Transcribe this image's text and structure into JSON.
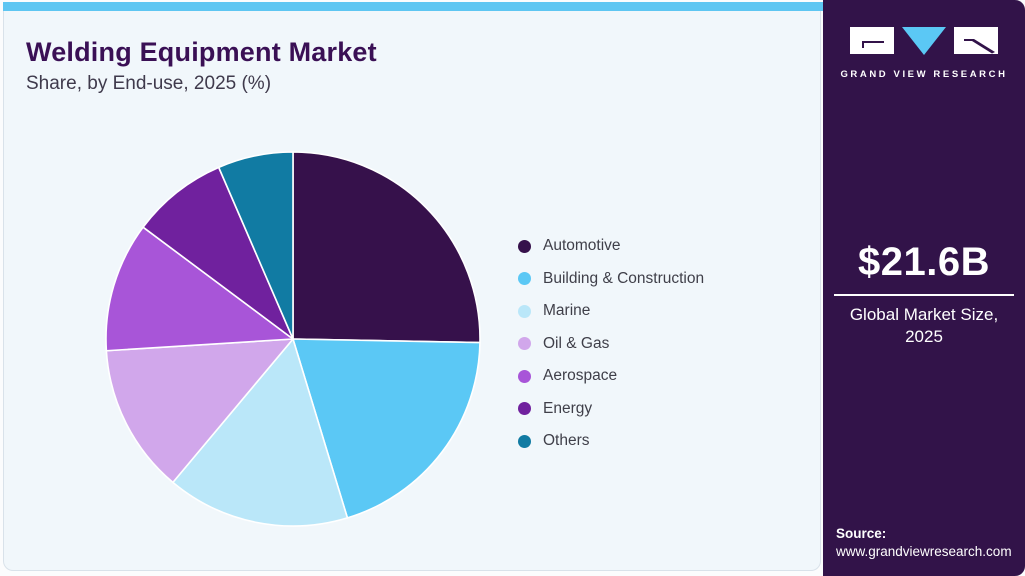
{
  "page": {
    "title": "Welding Equipment Market",
    "subtitle": "Share, by End-use, 2025 (%)",
    "accent_bar_color": "#5ec6f2",
    "card_bg": "#f1f7fb",
    "sidebar_bg": "#321349"
  },
  "brand": {
    "name": "GRAND VIEW RESEARCH",
    "logo_block_color": "#ffffff",
    "logo_triangle_color": "#5bc8f5"
  },
  "sidebar": {
    "market_size": "$21.6B",
    "market_size_caption": "Global Market Size, 2025",
    "source_label": "Source:",
    "source_url": "www.grandviewresearch.com"
  },
  "chart_data": {
    "type": "pie",
    "title": "Welding Equipment Market Share, by End-use, 2025 (%)",
    "start_angle_deg": -90,
    "direction": "clockwise",
    "legend_position": "right",
    "categories": [
      "Automotive",
      "Building & Construction",
      "Marine",
      "Oil & Gas",
      "Aerospace",
      "Energy",
      "Others"
    ],
    "values": [
      25.3,
      20.0,
      15.8,
      12.9,
      11.2,
      8.3,
      6.5
    ],
    "colors": [
      "#36114b",
      "#5bc8f5",
      "#bae7f9",
      "#d1a7eb",
      "#a855d8",
      "#70219e",
      "#117ba3"
    ],
    "slice_gap_color": "#ffffff"
  }
}
